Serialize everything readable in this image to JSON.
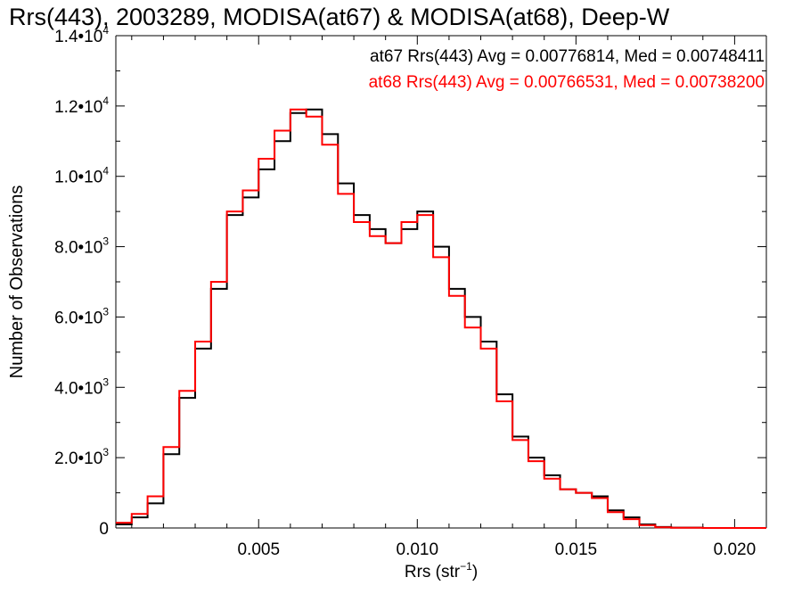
{
  "chart_data": {
    "type": "line",
    "step": true,
    "title": "Rrs(443), 2003289, MODISA(at67) & MODISA(at68), Deep-W",
    "xlabel_base": "Rrs (str",
    "xlabel_exp": "−1",
    "xlabel_close": ")",
    "ylabel": "Number of Observations",
    "xlim": [
      0.0005,
      0.021
    ],
    "ylim": [
      0,
      14000
    ],
    "xticks": [
      {
        "value": 0.005,
        "label": "0.005"
      },
      {
        "value": 0.01,
        "label": "0.010"
      },
      {
        "value": 0.015,
        "label": "0.015"
      },
      {
        "value": 0.02,
        "label": "0.020"
      }
    ],
    "yticks": [
      {
        "value": 0,
        "mant": "0",
        "exp": ""
      },
      {
        "value": 2000,
        "mant": "2.0•10",
        "exp": "3"
      },
      {
        "value": 4000,
        "mant": "4.0•10",
        "exp": "3"
      },
      {
        "value": 6000,
        "mant": "6.0•10",
        "exp": "3"
      },
      {
        "value": 8000,
        "mant": "8.0•10",
        "exp": "3"
      },
      {
        "value": 10000,
        "mant": "1.0•10",
        "exp": "4"
      },
      {
        "value": 12000,
        "mant": "1.2•10",
        "exp": "4"
      },
      {
        "value": 14000,
        "mant": "1.4•10",
        "exp": "4"
      }
    ],
    "grid": false,
    "annotations": [
      {
        "text": "at67 Rrs(443) Avg = 0.00776814, Med = 0.00748411",
        "color": "#000000"
      },
      {
        "text": "at68 Rrs(443) Avg = 0.00766531, Med = 0.00738200",
        "color": "#ff0000"
      }
    ],
    "series": [
      {
        "key": "at67",
        "color": "#000000",
        "x": [
          0.0005,
          0.001,
          0.0015,
          0.002,
          0.0025,
          0.003,
          0.0035,
          0.004,
          0.0045,
          0.005,
          0.0055,
          0.006,
          0.0065,
          0.007,
          0.0075,
          0.008,
          0.0085,
          0.009,
          0.0095,
          0.01,
          0.0105,
          0.011,
          0.0115,
          0.012,
          0.0125,
          0.013,
          0.0135,
          0.014,
          0.0145,
          0.015,
          0.0155,
          0.016,
          0.0165,
          0.017,
          0.0175,
          0.018,
          0.019,
          0.021
        ],
        "y": [
          100,
          300,
          700,
          2100,
          3700,
          5100,
          6800,
          8900,
          9400,
          10200,
          11000,
          11800,
          11900,
          11200,
          9800,
          8900,
          8500,
          8100,
          8500,
          9000,
          8000,
          6800,
          6000,
          5300,
          3800,
          2600,
          2000,
          1500,
          1100,
          1000,
          900,
          500,
          300,
          100,
          30,
          10,
          0,
          0
        ]
      },
      {
        "key": "at68",
        "color": "#ff0000",
        "x": [
          0.0005,
          0.001,
          0.0015,
          0.002,
          0.0025,
          0.003,
          0.0035,
          0.004,
          0.0045,
          0.005,
          0.0055,
          0.006,
          0.0065,
          0.007,
          0.0075,
          0.008,
          0.0085,
          0.009,
          0.0095,
          0.01,
          0.0105,
          0.011,
          0.0115,
          0.012,
          0.0125,
          0.013,
          0.0135,
          0.014,
          0.0145,
          0.015,
          0.0155,
          0.016,
          0.0165,
          0.017,
          0.0175,
          0.018,
          0.019,
          0.021
        ],
        "y": [
          150,
          400,
          900,
          2300,
          3900,
          5300,
          7000,
          9000,
          9600,
          10500,
          11300,
          11900,
          11700,
          10900,
          9500,
          8700,
          8300,
          8100,
          8700,
          8900,
          7700,
          6600,
          5700,
          5100,
          3600,
          2500,
          1900,
          1400,
          1100,
          1000,
          850,
          450,
          250,
          80,
          20,
          5,
          0,
          0
        ]
      }
    ]
  }
}
